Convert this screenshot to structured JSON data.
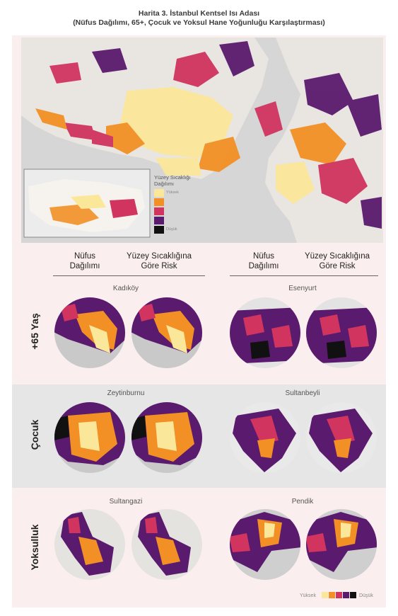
{
  "title_line1": "Harita 3. İstanbul Kentsel Isı Adası",
  "title_line2": "(Nüfus Dağılımı, 65+, Çocuk ve Yoksul Hane Yoğunluğu Karşılaştırması)",
  "map_legend": {
    "title_l1": "Yüzey Sıcaklığı",
    "title_l2": "Dağılımı",
    "high": "Yüksek",
    "low": "Düşük",
    "colors": [
      "#fbe79a",
      "#f29025",
      "#d0345f",
      "#5a1a6e",
      "#111111"
    ]
  },
  "column_headers": {
    "left_a_l1": "Nüfus",
    "left_a_l2": "Dağılımı",
    "left_b_l1": "Yüzey Sıcaklığına",
    "left_b_l2": "Göre Risk",
    "right_a_l1": "Nüfus",
    "right_a_l2": "Dağılımı",
    "right_b_l1": "Yüzey Sıcaklığına",
    "right_b_l2": "Göre Risk"
  },
  "rows": {
    "elderly": {
      "label": "+65 Yaş",
      "left_district": "Kadıköy",
      "right_district": "Esenyurt"
    },
    "children": {
      "label": "Çocuk",
      "left_district": "Zeytinburnu",
      "right_district": "Sultanbeyli"
    },
    "poverty": {
      "label": "Yoksulluk",
      "left_district": "Sultangazi",
      "right_district": "Pendik"
    }
  },
  "bottom_legend": {
    "high": "Yüksek",
    "low": "Düşük"
  }
}
